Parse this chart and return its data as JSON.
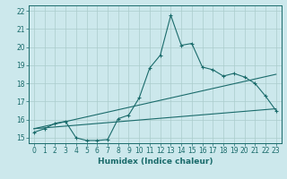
{
  "xlabel": "Humidex (Indice chaleur)",
  "ylabel": "",
  "xlim": [
    -0.5,
    23.5
  ],
  "ylim": [
    14.7,
    22.3
  ],
  "yticks": [
    15,
    16,
    17,
    18,
    19,
    20,
    21,
    22
  ],
  "xticks": [
    0,
    1,
    2,
    3,
    4,
    5,
    6,
    7,
    8,
    9,
    10,
    11,
    12,
    13,
    14,
    15,
    16,
    17,
    18,
    19,
    20,
    21,
    22,
    23
  ],
  "xtick_labels": [
    "0",
    "1",
    "2",
    "3",
    "4",
    "5",
    "6",
    "7",
    "8",
    "9",
    "10",
    "11",
    "12",
    "13",
    "14",
    "15",
    "16",
    "17",
    "18",
    "19",
    "20",
    "21",
    "22",
    "23"
  ],
  "background_color": "#cce8ec",
  "grid_color": "#aacccc",
  "line_color": "#1a6b6b",
  "curve_x": [
    0,
    1,
    2,
    3,
    4,
    5,
    6,
    7,
    8,
    9,
    10,
    11,
    12,
    13,
    14,
    15,
    16,
    17,
    18,
    19,
    20,
    21,
    22,
    23
  ],
  "curve_y": [
    15.3,
    15.5,
    15.8,
    15.9,
    15.0,
    14.85,
    14.85,
    14.9,
    16.05,
    16.25,
    17.2,
    18.85,
    19.55,
    21.75,
    20.1,
    20.2,
    18.9,
    18.75,
    18.4,
    18.55,
    18.35,
    18.0,
    17.3,
    16.5
  ],
  "trend1_x": [
    0,
    23
  ],
  "trend1_y": [
    15.5,
    18.5
  ],
  "trend2_x": [
    0,
    23
  ],
  "trend2_y": [
    15.5,
    16.6
  ],
  "xlabel_fontsize": 6.5,
  "tick_fontsize": 5.5
}
